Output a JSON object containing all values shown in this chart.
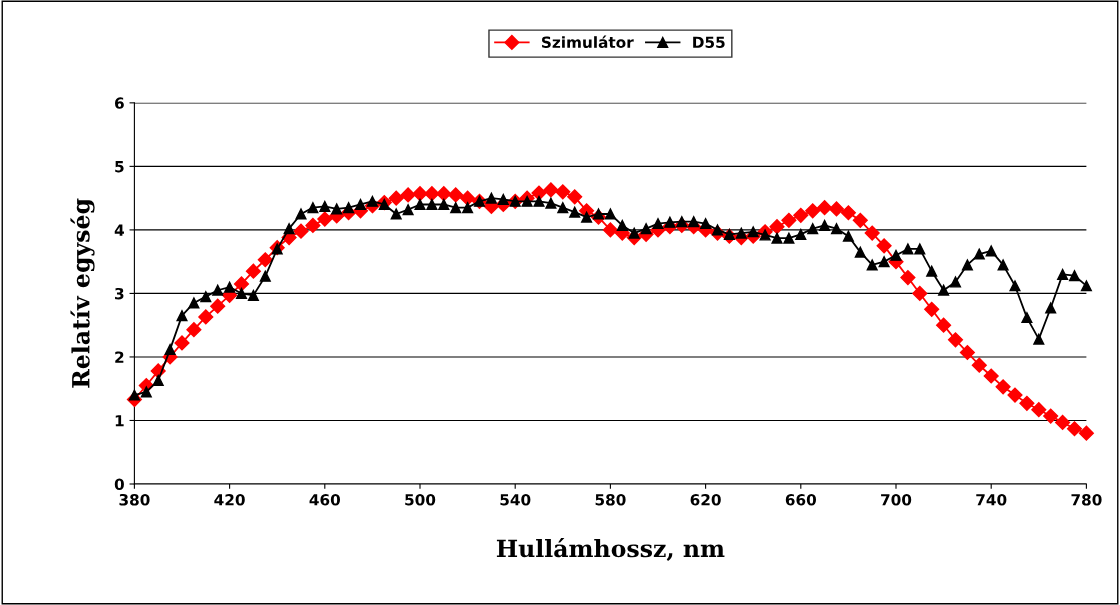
{
  "chart_data": {
    "type": "line",
    "xlabel": "Hullámhossz, nm",
    "ylabel": "Relatív egység",
    "x": [
      380,
      385,
      390,
      395,
      400,
      405,
      410,
      415,
      420,
      425,
      430,
      435,
      440,
      445,
      450,
      455,
      460,
      465,
      470,
      475,
      480,
      485,
      490,
      495,
      500,
      505,
      510,
      515,
      520,
      525,
      530,
      535,
      540,
      545,
      550,
      555,
      560,
      565,
      570,
      575,
      580,
      585,
      590,
      595,
      600,
      605,
      610,
      615,
      620,
      625,
      630,
      635,
      640,
      645,
      650,
      655,
      660,
      665,
      670,
      675,
      680,
      685,
      690,
      695,
      700,
      705,
      710,
      715,
      720,
      725,
      730,
      735,
      740,
      745,
      750,
      755,
      760,
      765,
      770,
      775,
      780
    ],
    "series": [
      {
        "name": "Szimulátor",
        "color": "#ff0000",
        "marker": "diamond",
        "values": [
          1.33,
          1.55,
          1.78,
          2.0,
          2.22,
          2.43,
          2.63,
          2.8,
          2.97,
          3.15,
          3.35,
          3.53,
          3.72,
          3.88,
          3.98,
          4.07,
          4.17,
          4.22,
          4.27,
          4.3,
          4.38,
          4.43,
          4.5,
          4.55,
          4.57,
          4.57,
          4.57,
          4.55,
          4.5,
          4.45,
          4.37,
          4.4,
          4.45,
          4.5,
          4.58,
          4.63,
          4.6,
          4.52,
          4.3,
          4.2,
          4.0,
          3.95,
          3.88,
          3.93,
          4.0,
          4.05,
          4.07,
          4.05,
          4.0,
          3.95,
          3.9,
          3.88,
          3.9,
          3.97,
          4.05,
          4.15,
          4.23,
          4.3,
          4.35,
          4.33,
          4.27,
          4.15,
          3.95,
          3.75,
          3.5,
          3.25,
          3.0,
          2.75,
          2.5,
          2.27,
          2.07,
          1.87,
          1.7,
          1.53,
          1.4,
          1.27,
          1.17,
          1.07,
          0.97,
          0.87,
          0.8
        ]
      },
      {
        "name": "D55",
        "color": "#000000",
        "marker": "triangle",
        "values": [
          1.4,
          1.45,
          1.63,
          2.12,
          2.65,
          2.85,
          2.95,
          3.05,
          3.1,
          3.0,
          2.97,
          3.27,
          3.7,
          4.02,
          4.25,
          4.35,
          4.37,
          4.33,
          4.35,
          4.4,
          4.45,
          4.4,
          4.25,
          4.32,
          4.4,
          4.4,
          4.4,
          4.35,
          4.35,
          4.45,
          4.5,
          4.48,
          4.45,
          4.45,
          4.45,
          4.42,
          4.35,
          4.28,
          4.2,
          4.25,
          4.25,
          4.07,
          3.95,
          4.02,
          4.1,
          4.12,
          4.13,
          4.13,
          4.1,
          4.0,
          3.93,
          3.95,
          3.97,
          3.92,
          3.87,
          3.87,
          3.93,
          4.02,
          4.07,
          4.02,
          3.9,
          3.65,
          3.45,
          3.5,
          3.6,
          3.7,
          3.7,
          3.35,
          3.05,
          3.18,
          3.45,
          3.62,
          3.67,
          3.45,
          3.12,
          2.62,
          2.28,
          2.77,
          3.3,
          3.28,
          3.12
        ]
      }
    ],
    "xlim": [
      380,
      780
    ],
    "xticks": [
      380,
      420,
      460,
      500,
      540,
      580,
      620,
      660,
      700,
      740,
      780
    ],
    "ylim": [
      0,
      6
    ],
    "yticks": [
      0,
      1,
      2,
      3,
      4,
      5,
      6
    ],
    "grid": "y",
    "legend": "top",
    "line_style": "solid"
  }
}
